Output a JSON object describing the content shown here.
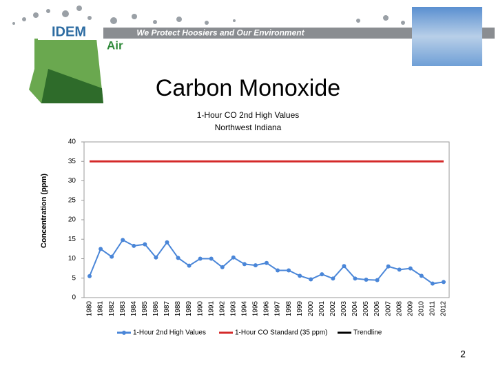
{
  "header": {
    "logo": "IDEM",
    "banner": "We Protect Hoosiers and Our Environment",
    "section": "Air"
  },
  "slide_title": "Carbon Monoxide",
  "chart_data": {
    "type": "line",
    "title": "1-Hour CO 2nd High Values",
    "subtitle": "Northwest Indiana",
    "y_label": "Concentration (ppm)",
    "categories": [
      "1980",
      "1981",
      "1982",
      "1983",
      "1984",
      "1985",
      "1986",
      "1987",
      "1988",
      "1989",
      "1990",
      "1991",
      "1992",
      "1993",
      "1994",
      "1995",
      "1996",
      "1997",
      "1998",
      "1999",
      "2000",
      "2001",
      "2002",
      "2003",
      "2004",
      "2005",
      "2006",
      "2007",
      "2008",
      "2009",
      "2010",
      "2011",
      "2012"
    ],
    "series": [
      {
        "name": "1-Hour 2nd High Values",
        "color": "#4a86d8",
        "markers": true,
        "values": [
          5.5,
          12.5,
          10.5,
          14.8,
          13.3,
          13.7,
          10.3,
          14.2,
          10.2,
          8.2,
          10.0,
          10.0,
          7.8,
          10.3,
          8.6,
          8.3,
          8.9,
          7.0,
          7.0,
          5.6,
          4.7,
          6.0,
          4.9,
          8.1,
          4.9,
          4.6,
          4.5,
          8.0,
          7.2,
          7.5,
          5.6,
          3.6,
          4.0
        ]
      },
      {
        "name": "1-Hour CO Standard (35 ppm)",
        "color": "#d42a2a",
        "markers": false,
        "values": [
          35,
          35,
          35,
          35,
          35,
          35,
          35,
          35,
          35,
          35,
          35,
          35,
          35,
          35,
          35,
          35,
          35,
          35,
          35,
          35,
          35,
          35,
          35,
          35,
          35,
          35,
          35,
          35,
          35,
          35,
          35,
          35,
          35
        ]
      },
      {
        "name": "Trendline",
        "color": "#000000",
        "markers": false,
        "values": [
          null,
          null,
          null,
          null,
          null,
          null,
          null,
          null,
          null,
          null,
          null,
          null,
          null,
          null,
          null,
          null,
          null,
          null,
          null,
          null,
          null,
          null,
          null,
          null,
          null,
          null,
          null,
          null,
          null,
          null,
          null,
          null,
          null
        ]
      }
    ],
    "ylim": [
      0,
      40
    ],
    "yticks": [
      0,
      5,
      10,
      15,
      20,
      25,
      30,
      35,
      40
    ],
    "grid": false,
    "legend": "bottom"
  },
  "page_number": "2"
}
